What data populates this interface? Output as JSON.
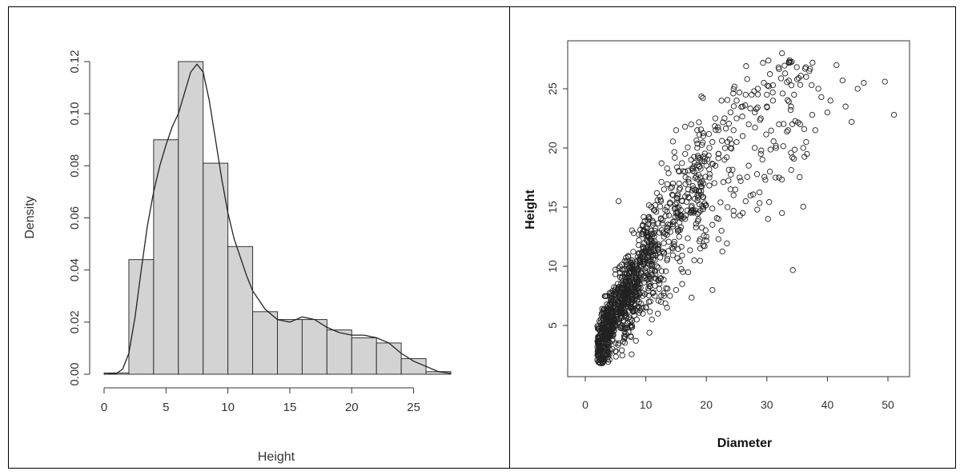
{
  "chart_data": [
    {
      "type": "histogram",
      "xlabel": "Height",
      "ylabel": "Density",
      "xlim": [
        0,
        28
      ],
      "ylim": [
        0,
        0.12
      ],
      "x_ticks": [
        "0",
        "5",
        "10",
        "15",
        "20",
        "25"
      ],
      "y_ticks": [
        "0.00",
        "0.02",
        "0.04",
        "0.06",
        "0.08",
        "0.10",
        "0.12"
      ],
      "bins": [
        {
          "from": 0,
          "to": 2,
          "density": 0.0005
        },
        {
          "from": 2,
          "to": 4,
          "density": 0.044
        },
        {
          "from": 4,
          "to": 6,
          "density": 0.09
        },
        {
          "from": 6,
          "to": 8,
          "density": 0.12
        },
        {
          "from": 8,
          "to": 10,
          "density": 0.081
        },
        {
          "from": 10,
          "to": 12,
          "density": 0.049
        },
        {
          "from": 12,
          "to": 14,
          "density": 0.024
        },
        {
          "from": 14,
          "to": 16,
          "density": 0.021
        },
        {
          "from": 16,
          "to": 18,
          "density": 0.021
        },
        {
          "from": 18,
          "to": 20,
          "density": 0.017
        },
        {
          "from": 20,
          "to": 22,
          "density": 0.014
        },
        {
          "from": 22,
          "to": 24,
          "density": 0.012
        },
        {
          "from": 24,
          "to": 26,
          "density": 0.006
        },
        {
          "from": 26,
          "to": 28,
          "density": 0.001
        }
      ],
      "density_curve": {
        "x": [
          0,
          1,
          1.5,
          2,
          2.5,
          3,
          3.5,
          4,
          4.5,
          5,
          5.5,
          6,
          6.5,
          7,
          7.5,
          8,
          8.5,
          9,
          9.5,
          10,
          10.5,
          11,
          11.5,
          12,
          13,
          14,
          15,
          16,
          17,
          18,
          19,
          20,
          21,
          22,
          23,
          24,
          25,
          26,
          27,
          28
        ],
        "y": [
          0,
          0.0003,
          0.002,
          0.008,
          0.022,
          0.04,
          0.057,
          0.07,
          0.08,
          0.088,
          0.095,
          0.1,
          0.108,
          0.116,
          0.119,
          0.116,
          0.105,
          0.09,
          0.075,
          0.062,
          0.052,
          0.045,
          0.038,
          0.032,
          0.025,
          0.021,
          0.02,
          0.022,
          0.021,
          0.018,
          0.016,
          0.015,
          0.015,
          0.014,
          0.012,
          0.008,
          0.005,
          0.003,
          0.001,
          0.0003
        ]
      },
      "colors": {
        "bar_fill": "#d3d3d3",
        "bar_stroke": "#333333",
        "curve": "#222222"
      }
    },
    {
      "type": "scatter",
      "xlabel": "Diameter",
      "ylabel": "Height",
      "xlim": [
        0,
        52
      ],
      "ylim": [
        0,
        29
      ],
      "x_ticks": [
        "0",
        "10",
        "20",
        "30",
        "40",
        "50"
      ],
      "y_ticks": [
        "5",
        "10",
        "15",
        "20",
        "25"
      ],
      "marker": "open-circle",
      "point_count_estimate": 1500,
      "sample_points": [
        [
          32.5,
          28.0
        ],
        [
          41.5,
          27.0
        ],
        [
          37.0,
          26.5
        ],
        [
          36.5,
          26.0
        ],
        [
          42.5,
          25.7
        ],
        [
          46.0,
          25.5
        ],
        [
          49.5,
          25.6
        ],
        [
          38.5,
          25.0
        ],
        [
          30.0,
          24.5
        ],
        [
          33.0,
          26.3
        ],
        [
          35.0,
          25.8
        ],
        [
          44.0,
          22.2
        ],
        [
          51.0,
          22.8
        ],
        [
          39.0,
          24.3
        ],
        [
          40.0,
          23.0
        ],
        [
          33.5,
          21.5
        ],
        [
          34.0,
          23.5
        ],
        [
          32.0,
          22.0
        ],
        [
          36.5,
          20.5
        ],
        [
          36.0,
          20.0
        ],
        [
          32.5,
          14.5
        ],
        [
          32.0,
          17.5
        ],
        [
          30.5,
          18.0
        ],
        [
          28.0,
          20.0
        ],
        [
          26.5,
          15.5
        ],
        [
          26.0,
          14.5
        ],
        [
          24.0,
          16.5
        ],
        [
          22.5,
          13.0
        ],
        [
          22.0,
          12.3
        ],
        [
          21.0,
          8.0
        ],
        [
          22.5,
          24.0
        ],
        [
          21.5,
          22.5
        ],
        [
          20.5,
          20.0
        ],
        [
          19.0,
          19.0
        ],
        [
          18.5,
          21.5
        ],
        [
          16.5,
          21.8
        ],
        [
          15.0,
          21.5
        ],
        [
          16.5,
          19.5
        ],
        [
          15.5,
          18.0
        ],
        [
          14.5,
          17.0
        ],
        [
          13.0,
          16.5
        ],
        [
          12.5,
          15.5
        ],
        [
          5.5,
          15.5
        ],
        [
          8.0,
          12.8
        ],
        [
          9.5,
          13.5
        ],
        [
          10.0,
          11.5
        ],
        [
          11.0,
          12.5
        ],
        [
          11.5,
          10.5
        ],
        [
          12.5,
          9.0
        ],
        [
          13.0,
          7.5
        ],
        [
          12.0,
          6.0
        ],
        [
          11.0,
          5.5
        ],
        [
          10.0,
          6.5
        ],
        [
          9.0,
          8.5
        ],
        [
          8.0,
          9.5
        ],
        [
          7.0,
          10.0
        ],
        [
          6.0,
          9.0
        ],
        [
          5.5,
          7.5
        ],
        [
          5.0,
          6.5
        ],
        [
          4.5,
          5.5
        ],
        [
          4.0,
          5.0
        ],
        [
          3.5,
          4.0
        ],
        [
          3.0,
          3.5
        ],
        [
          2.5,
          3.0
        ],
        [
          2.0,
          2.5
        ],
        [
          2.5,
          1.8
        ],
        [
          3.0,
          2.2
        ],
        [
          4.0,
          3.0
        ],
        [
          5.0,
          3.5
        ],
        [
          6.5,
          4.5
        ],
        [
          7.5,
          5.5
        ],
        [
          8.5,
          6.5
        ],
        [
          9.5,
          7.5
        ],
        [
          10.5,
          8.5
        ],
        [
          11.5,
          9.0
        ],
        [
          13.5,
          10.5
        ],
        [
          14.5,
          11.5
        ],
        [
          15.5,
          12.5
        ],
        [
          16.5,
          14.0
        ],
        [
          17.5,
          15.0
        ],
        [
          18.5,
          16.0
        ],
        [
          19.5,
          17.0
        ],
        [
          20.5,
          17.5
        ],
        [
          21.5,
          18.5
        ],
        [
          23.0,
          19.0
        ],
        [
          24.0,
          20.0
        ],
        [
          25.0,
          20.5
        ],
        [
          26.0,
          21.0
        ],
        [
          27.0,
          22.0
        ],
        [
          28.0,
          23.0
        ],
        [
          29.0,
          22.5
        ],
        [
          30.0,
          23.5
        ],
        [
          31.0,
          24.0
        ],
        [
          27.5,
          24.5
        ],
        [
          26.0,
          23.5
        ],
        [
          25.0,
          22.5
        ],
        [
          24.5,
          21.5
        ],
        [
          23.5,
          20.5
        ],
        [
          22.0,
          19.5
        ],
        [
          20.0,
          18.5
        ],
        [
          19.0,
          17.5
        ],
        [
          18.0,
          18.0
        ],
        [
          17.0,
          16.5
        ],
        [
          16.0,
          15.5
        ],
        [
          15.0,
          14.5
        ],
        [
          14.0,
          13.5
        ],
        [
          13.0,
          12.5
        ],
        [
          12.0,
          11.5
        ],
        [
          11.0,
          10.0
        ],
        [
          10.0,
          9.5
        ],
        [
          9.0,
          10.5
        ],
        [
          8.0,
          8.0
        ],
        [
          7.0,
          7.0
        ],
        [
          6.0,
          6.0
        ],
        [
          5.0,
          5.0
        ],
        [
          4.5,
          6.5
        ],
        [
          3.5,
          5.5
        ],
        [
          3.0,
          4.5
        ],
        [
          2.5,
          4.0
        ],
        [
          6.0,
          8.0
        ],
        [
          7.5,
          8.5
        ],
        [
          8.5,
          9.0
        ],
        [
          9.5,
          11.0
        ],
        [
          10.5,
          12.0
        ],
        [
          11.5,
          13.0
        ],
        [
          12.5,
          14.0
        ],
        [
          13.5,
          15.0
        ],
        [
          14.5,
          16.0
        ],
        [
          15.5,
          17.0
        ],
        [
          16.5,
          18.0
        ],
        [
          17.5,
          19.0
        ],
        [
          18.5,
          20.0
        ],
        [
          19.5,
          21.0
        ],
        [
          21.0,
          20.5
        ],
        [
          22.0,
          21.5
        ],
        [
          23.0,
          22.5
        ],
        [
          24.0,
          23.0
        ],
        [
          25.0,
          24.0
        ],
        [
          26.5,
          24.5
        ],
        [
          28.5,
          25.0
        ],
        [
          29.5,
          25.5
        ],
        [
          31.0,
          25.3
        ],
        [
          34.5,
          24.5
        ],
        [
          35.5,
          22.0
        ],
        [
          37.5,
          22.8
        ],
        [
          38.0,
          21.5
        ],
        [
          40.5,
          24.0
        ],
        [
          43.0,
          23.5
        ],
        [
          45.0,
          25.0
        ],
        [
          31.5,
          20.0
        ],
        [
          29.0,
          19.5
        ],
        [
          27.0,
          18.5
        ],
        [
          25.5,
          17.5
        ],
        [
          24.5,
          16.0
        ],
        [
          23.5,
          15.0
        ],
        [
          22.0,
          14.0
        ],
        [
          21.0,
          13.5
        ],
        [
          20.0,
          12.5
        ],
        [
          19.0,
          11.5
        ],
        [
          18.0,
          10.5
        ],
        [
          17.0,
          9.5
        ],
        [
          16.0,
          8.5
        ],
        [
          15.0,
          8.0
        ],
        [
          14.0,
          7.5
        ],
        [
          13.5,
          6.5
        ],
        [
          12.5,
          7.0
        ],
        [
          11.5,
          7.5
        ],
        [
          10.5,
          7.0
        ],
        [
          9.5,
          6.0
        ],
        [
          8.5,
          5.5
        ],
        [
          7.5,
          5.0
        ],
        [
          6.5,
          4.0
        ],
        [
          5.5,
          3.5
        ],
        [
          4.5,
          3.0
        ],
        [
          3.5,
          2.5
        ],
        [
          2.0,
          3.2
        ]
      ],
      "colors": {
        "marker_stroke": "#222222",
        "box": "#333333"
      }
    }
  ]
}
